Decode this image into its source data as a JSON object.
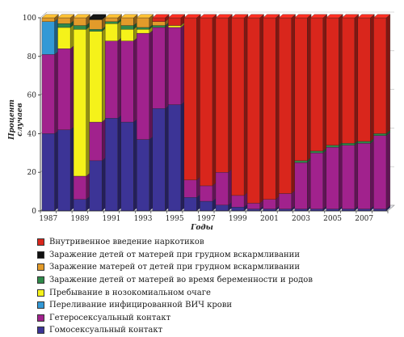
{
  "chart_data": {
    "type": "bar",
    "stacked": true,
    "xlabel": "Годы",
    "ylabel": "Процент случаев",
    "ylim": [
      0,
      100
    ],
    "yticks": [
      0,
      20,
      40,
      60,
      80,
      100
    ],
    "xtick_labels": [
      "1987",
      "1989",
      "1991",
      "1993",
      "1995",
      "1997",
      "1999",
      "2001",
      "2003",
      "2005",
      "2007"
    ],
    "categories": [
      "1987",
      "1988",
      "1989",
      "1990",
      "1991",
      "1992",
      "1993",
      "1994",
      "1995",
      "1996",
      "1997",
      "1998",
      "1999",
      "2000",
      "2001",
      "2002",
      "2003",
      "2004",
      "2005",
      "2006",
      "2007",
      "2008"
    ],
    "legend_position": "bottom",
    "series": [
      {
        "name": "Гомосексуальный контакт",
        "color": "#3c3496",
        "values": [
          40,
          42,
          6,
          26,
          48,
          46,
          37,
          53,
          55,
          7,
          5,
          3,
          2,
          1,
          1,
          1,
          1,
          1,
          1,
          1,
          1,
          1
        ]
      },
      {
        "name": "Гетеросексуальный контакт",
        "color": "#a1228d",
        "values": [
          41,
          42,
          12,
          20,
          40,
          42,
          55,
          42,
          40,
          9,
          8,
          17,
          6,
          3,
          5,
          8,
          24,
          29,
          32,
          33,
          34,
          38
        ]
      },
      {
        "name": "Переливание  инфицированной ВИЧ крови",
        "color": "#3399d6",
        "values": [
          17,
          0,
          0,
          0,
          0,
          0,
          0,
          0,
          0,
          0,
          0,
          0,
          0,
          0,
          0,
          0,
          0,
          0,
          0,
          0,
          0,
          0
        ]
      },
      {
        "name": "Пребывание в нозокомиальном очаге",
        "color": "#f5f21a",
        "values": [
          0,
          11,
          76,
          47,
          9,
          6,
          2,
          0,
          1,
          0,
          0,
          0,
          0,
          0,
          0,
          0,
          0,
          0,
          0,
          0,
          0,
          0
        ]
      },
      {
        "name": "Заражение детей от матерей во время беременности и  родов",
        "color": "#2f8a4a",
        "values": [
          0,
          2,
          2,
          1,
          1,
          2,
          1,
          1,
          0,
          0,
          0,
          0,
          0,
          0,
          0,
          0,
          1,
          1,
          1,
          1,
          1,
          1
        ]
      },
      {
        "name": "Заражение матерей от детей при грудном вскармливании",
        "color": "#e39b2a",
        "values": [
          2,
          3,
          4,
          5,
          2,
          4,
          5,
          2,
          0,
          0,
          0,
          0,
          0,
          0,
          0,
          0,
          0,
          0,
          0,
          0,
          0,
          0
        ]
      },
      {
        "name": "Заражение детей от матерей при грудном вскармливании",
        "color": "#111111",
        "values": [
          0,
          0,
          0,
          1,
          0,
          0,
          0,
          0,
          0,
          0,
          0,
          0,
          0,
          0,
          0,
          0,
          0,
          0,
          0,
          0,
          0,
          0
        ]
      },
      {
        "name": "Внутривенное введение наркотиков",
        "color": "#d9261c",
        "values": [
          0,
          0,
          0,
          0,
          0,
          0,
          0,
          2,
          4,
          84,
          87,
          80,
          92,
          96,
          94,
          91,
          74,
          69,
          66,
          65,
          64,
          60
        ]
      }
    ]
  },
  "legend_order": [
    7,
    6,
    5,
    4,
    3,
    2,
    1,
    0
  ]
}
